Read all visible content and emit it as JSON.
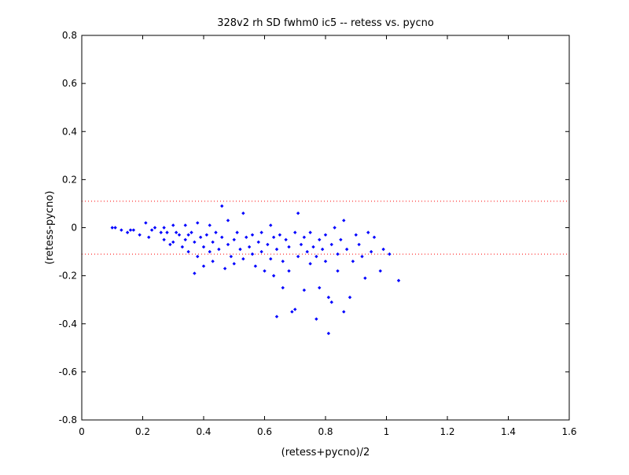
{
  "chart_data": {
    "type": "scatter",
    "title": "328v2 rh SD fwhm0 ic5 -- retess vs. pycno",
    "xlabel": "(retess+pycno)/2",
    "ylabel": "(retess-pycno)",
    "xlim": [
      0,
      1.6
    ],
    "ylim": [
      -0.8,
      0.8
    ],
    "xticks": [
      0,
      0.2,
      0.4,
      0.6,
      0.8,
      1,
      1.2,
      1.4,
      1.6
    ],
    "xtick_labels": [
      "0",
      "0.2",
      "0.4",
      "0.6",
      "0.8",
      "1",
      "1.2",
      "1.4",
      "1.6"
    ],
    "yticks": [
      -0.8,
      -0.6,
      -0.4,
      -0.2,
      0,
      0.2,
      0.4,
      0.6,
      0.8
    ],
    "ytick_labels": [
      "-0.8",
      "-0.6",
      "-0.4",
      "-0.2",
      "0",
      "0.2",
      "0.4",
      "0.6",
      "0.8"
    ],
    "grid": false,
    "reference_lines": [
      0.11,
      -0.11
    ],
    "marker_color": "#0000ff",
    "reference_line_color": "#ff0000",
    "series": [
      {
        "points": [
          [
            0.1,
            0.0
          ],
          [
            0.11,
            0.0
          ],
          [
            0.13,
            -0.01
          ],
          [
            0.15,
            -0.02
          ],
          [
            0.16,
            -0.01
          ],
          [
            0.17,
            -0.01
          ],
          [
            0.19,
            -0.03
          ],
          [
            0.21,
            0.02
          ],
          [
            0.22,
            -0.04
          ],
          [
            0.23,
            -0.01
          ],
          [
            0.24,
            0.0
          ],
          [
            0.26,
            -0.02
          ],
          [
            0.27,
            0.0
          ],
          [
            0.27,
            -0.05
          ],
          [
            0.28,
            -0.02
          ],
          [
            0.29,
            -0.07
          ],
          [
            0.3,
            0.01
          ],
          [
            0.3,
            -0.06
          ],
          [
            0.31,
            -0.02
          ],
          [
            0.32,
            -0.03
          ],
          [
            0.33,
            -0.08
          ],
          [
            0.34,
            0.01
          ],
          [
            0.34,
            -0.05
          ],
          [
            0.35,
            -0.03
          ],
          [
            0.35,
            -0.1
          ],
          [
            0.36,
            -0.02
          ],
          [
            0.37,
            -0.06
          ],
          [
            0.37,
            -0.19
          ],
          [
            0.38,
            0.02
          ],
          [
            0.38,
            -0.12
          ],
          [
            0.39,
            -0.04
          ],
          [
            0.4,
            -0.08
          ],
          [
            0.4,
            -0.16
          ],
          [
            0.41,
            -0.03
          ],
          [
            0.42,
            -0.1
          ],
          [
            0.42,
            0.01
          ],
          [
            0.43,
            -0.06
          ],
          [
            0.43,
            -0.14
          ],
          [
            0.44,
            -0.02
          ],
          [
            0.45,
            -0.09
          ],
          [
            0.46,
            0.09
          ],
          [
            0.46,
            -0.04
          ],
          [
            0.47,
            -0.17
          ],
          [
            0.48,
            -0.07
          ],
          [
            0.48,
            0.03
          ],
          [
            0.49,
            -0.12
          ],
          [
            0.5,
            -0.05
          ],
          [
            0.5,
            -0.15
          ],
          [
            0.51,
            -0.02
          ],
          [
            0.52,
            -0.09
          ],
          [
            0.53,
            0.06
          ],
          [
            0.53,
            -0.13
          ],
          [
            0.54,
            -0.04
          ],
          [
            0.55,
            -0.08
          ],
          [
            0.56,
            -0.11
          ],
          [
            0.56,
            -0.03
          ],
          [
            0.57,
            -0.16
          ],
          [
            0.58,
            -0.06
          ],
          [
            0.59,
            -0.1
          ],
          [
            0.59,
            -0.02
          ],
          [
            0.6,
            -0.18
          ],
          [
            0.61,
            -0.07
          ],
          [
            0.62,
            -0.13
          ],
          [
            0.62,
            0.01
          ],
          [
            0.63,
            -0.04
          ],
          [
            0.63,
            -0.2
          ],
          [
            0.64,
            -0.09
          ],
          [
            0.64,
            -0.37
          ],
          [
            0.65,
            -0.03
          ],
          [
            0.66,
            -0.14
          ],
          [
            0.66,
            -0.25
          ],
          [
            0.67,
            -0.05
          ],
          [
            0.68,
            -0.18
          ],
          [
            0.68,
            -0.08
          ],
          [
            0.69,
            -0.35
          ],
          [
            0.7,
            -0.02
          ],
          [
            0.7,
            -0.34
          ],
          [
            0.71,
            0.06
          ],
          [
            0.71,
            -0.12
          ],
          [
            0.72,
            -0.07
          ],
          [
            0.73,
            -0.26
          ],
          [
            0.73,
            -0.04
          ],
          [
            0.74,
            -0.1
          ],
          [
            0.75,
            -0.15
          ],
          [
            0.75,
            -0.02
          ],
          [
            0.76,
            -0.08
          ],
          [
            0.77,
            -0.38
          ],
          [
            0.77,
            -0.12
          ],
          [
            0.78,
            -0.05
          ],
          [
            0.78,
            -0.25
          ],
          [
            0.79,
            -0.09
          ],
          [
            0.8,
            -0.03
          ],
          [
            0.8,
            -0.14
          ],
          [
            0.81,
            -0.29
          ],
          [
            0.81,
            -0.44
          ],
          [
            0.82,
            -0.31
          ],
          [
            0.82,
            -0.07
          ],
          [
            0.83,
            0.0
          ],
          [
            0.84,
            -0.11
          ],
          [
            0.84,
            -0.18
          ],
          [
            0.85,
            -0.05
          ],
          [
            0.86,
            -0.35
          ],
          [
            0.86,
            0.03
          ],
          [
            0.87,
            -0.09
          ],
          [
            0.88,
            -0.29
          ],
          [
            0.89,
            -0.14
          ],
          [
            0.9,
            -0.03
          ],
          [
            0.91,
            -0.07
          ],
          [
            0.92,
            -0.12
          ],
          [
            0.93,
            -0.21
          ],
          [
            0.94,
            -0.02
          ],
          [
            0.95,
            -0.1
          ],
          [
            0.96,
            -0.04
          ],
          [
            0.98,
            -0.18
          ],
          [
            0.99,
            -0.09
          ],
          [
            1.01,
            -0.11
          ],
          [
            1.04,
            -0.22
          ]
        ]
      }
    ]
  }
}
